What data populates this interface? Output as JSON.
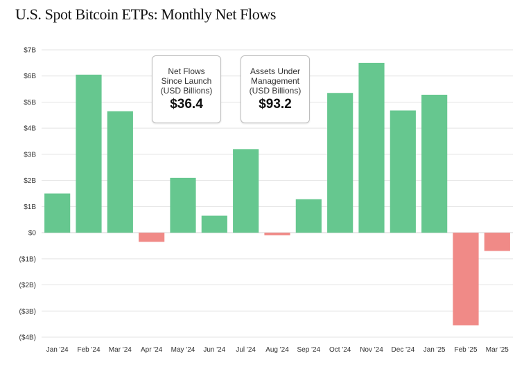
{
  "title": "U.S. Spot Bitcoin ETPs: Monthly Net Flows",
  "callouts": [
    {
      "label_lines": [
        "Net Flows",
        "Since Launch",
        "(USD Billions)"
      ],
      "value": "$36.4"
    },
    {
      "label_lines": [
        "Assets Under",
        "Management",
        "(USD Billions)"
      ],
      "value": "$93.2"
    }
  ],
  "colors": {
    "positive": "#66c78f",
    "negative": "#f08a87"
  },
  "chart_data": {
    "type": "bar",
    "title": "U.S. Spot Bitcoin ETPs: Monthly Net Flows",
    "categories": [
      "Jan '24",
      "Feb '24",
      "Mar '24",
      "Apr '24",
      "May '24",
      "Jun '24",
      "Jul '24",
      "Aug '24",
      "Sep '24",
      "Oct '24",
      "Nov '24",
      "Dec '24",
      "Jan '25",
      "Feb '25",
      "Mar '25"
    ],
    "values": [
      1.5,
      6.05,
      4.65,
      -0.35,
      2.1,
      0.65,
      3.2,
      -0.1,
      1.28,
      5.35,
      6.5,
      4.68,
      5.28,
      -3.55,
      -0.7
    ],
    "ylim": [
      -4,
      7
    ],
    "yticks": [
      7,
      6,
      5,
      4,
      3,
      2,
      1,
      0,
      -1,
      -2,
      -3,
      -4
    ],
    "ytick_labels": [
      "$7B",
      "$6B",
      "$5B",
      "$4B",
      "$3B",
      "$2B",
      "$1B",
      "$0",
      "($1B)",
      "($2B)",
      "($3B)",
      "($4B)"
    ],
    "xlabel": "",
    "ylabel": "",
    "grid": true
  }
}
